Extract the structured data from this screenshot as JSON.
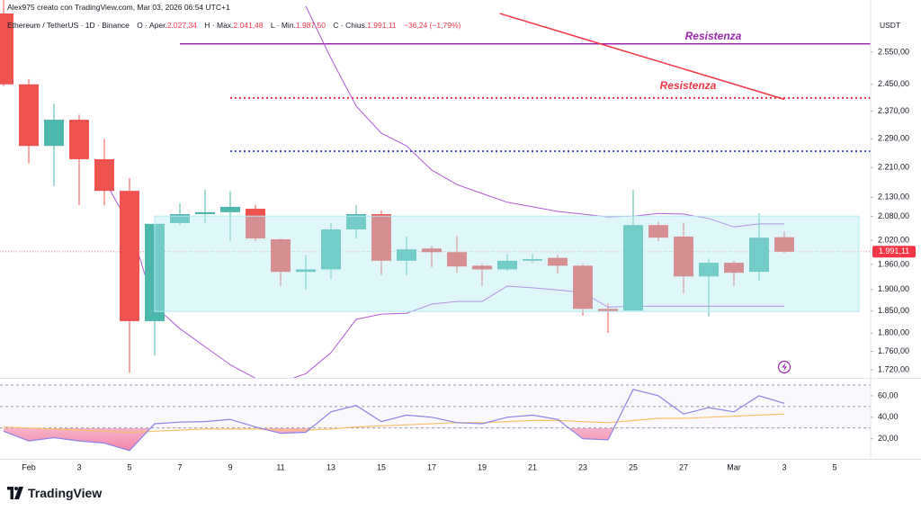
{
  "header": "Alex975 creato con TradingView.com, Mar 03, 2026 06:54 UTC+1",
  "footer": "TradingView",
  "chart_data": {
    "type": "candlestick",
    "legend": {
      "symbol": "Ethereum / TetherUS · 1D · Binance",
      "items": [
        {
          "label": "O · Aper.",
          "value": "2.027,34"
        },
        {
          "label": "H · Max.",
          "value": "2.041,48"
        },
        {
          "label": "L · Min.",
          "value": "1.987,50"
        },
        {
          "label": "C · Chius.",
          "value": "1.991,11"
        }
      ],
      "change": "−36,24 (−1,79%)"
    },
    "y_unit": "USDT",
    "categories": [
      null,
      "Feb",
      null,
      "3",
      null,
      "5",
      null,
      "7",
      null,
      "9",
      null,
      "11",
      null,
      "13",
      null,
      "15",
      null,
      "17",
      null,
      "19",
      null,
      "21",
      null,
      "23",
      null,
      "25",
      null,
      "27",
      null,
      "Mar",
      null,
      "3",
      null,
      "5"
    ],
    "open": [
      2675,
      2450,
      2270,
      2345,
      2233,
      2147,
      1827,
      2063,
      2086,
      2091,
      2100,
      2022,
      1942,
      1948,
      2047,
      2086,
      1969,
      1999,
      1990,
      1957,
      1948,
      1969,
      1976,
      1957,
      1855,
      1851,
      2058,
      2029,
      1931,
      1964,
      1942,
      2027.34,
      null,
      null
    ],
    "high": [
      2720,
      2466,
      2392,
      2360,
      2290,
      2181,
      2063,
      2115,
      2150,
      2146,
      2110,
      2024,
      1983,
      2063,
      2109,
      2096,
      2029,
      2005,
      2031,
      1962,
      1985,
      1985,
      1984,
      1962,
      1868,
      2150,
      2066,
      2064,
      1974,
      1969,
      2088,
      2041.48,
      null,
      null
    ],
    "low": [
      2445,
      2221,
      2160,
      2109,
      2109,
      1714,
      1751,
      2058,
      2063,
      2017,
      2017,
      1908,
      1900,
      1924,
      2024,
      1934,
      1934,
      1953,
      1940,
      1908,
      1944,
      1964,
      1938,
      1840,
      1800,
      1849,
      2017,
      1890,
      1838,
      1908,
      1920,
      1987.5,
      null,
      null
    ],
    "close": [
      2450,
      2270,
      2345,
      2233,
      2147,
      1827,
      2061,
      2086,
      2091,
      2105,
      2024,
      1942,
      1948,
      2047,
      2086,
      1969,
      1997,
      1990,
      1955,
      1948,
      1969,
      1973,
      1957,
      1855,
      1849,
      2058,
      2026,
      1931,
      1964,
      1940,
      2026,
      1991.11,
      null,
      null
    ],
    "up_color": "#4cb8ac",
    "down_color": "#ef5350",
    "last_price_label": "1.991,11",
    "log_scale": true,
    "ylim": [
      1703,
      2660
    ],
    "yticks": [
      {
        "value": 2550,
        "label": "2.550,00"
      },
      {
        "value": 2450,
        "label": "2.450,00"
      },
      {
        "value": 2370,
        "label": "2.370,00"
      },
      {
        "value": 2290,
        "label": "2.290,00"
      },
      {
        "value": 2210,
        "label": "2.210,00"
      },
      {
        "value": 2130,
        "label": "2.130,00"
      },
      {
        "value": 2080,
        "label": "2.080,00"
      },
      {
        "value": 2020,
        "label": "2.020,00"
      },
      {
        "value": 1960,
        "label": "1.960,00"
      },
      {
        "value": 1900,
        "label": "1.900,00"
      },
      {
        "value": 1850,
        "label": "1.850,00"
      },
      {
        "value": 1800,
        "label": "1.800,00"
      },
      {
        "value": 1760,
        "label": "1.760,00"
      },
      {
        "value": 1720,
        "label": "1.720,00"
      }
    ],
    "bands": [
      {
        "color": "#b15ad8",
        "values": [
          null,
          null,
          null,
          null,
          null,
          null,
          null,
          null,
          null,
          null,
          null,
          null,
          2699,
          2530,
          2385,
          2306,
          2270,
          2203,
          2164,
          2140,
          2117,
          2105,
          2093,
          2086,
          2079,
          2081,
          2088,
          2086,
          2075,
          2053,
          2061,
          2061,
          null,
          null
        ]
      },
      {
        "color": "#b15ad8",
        "values": [
          null,
          null,
          null,
          null,
          2176,
          2058,
          1861,
          1810,
          1770,
          1731,
          1702,
          1693,
          1712,
          1757,
          1831,
          1843,
          1845,
          1866,
          1872,
          1872,
          1908,
          1904,
          1899,
          1893,
          1859,
          1861,
          1861,
          1861,
          1861,
          1861,
          1861,
          1861,
          null,
          null
        ]
      }
    ],
    "drawings": {
      "horizontal_lines": [
        {
          "label": "Resistenza",
          "value": 2576,
          "color": "#9c27b0",
          "style": "solid"
        },
        {
          "value": 2409,
          "color": "#f23645",
          "style": "dotted"
        },
        {
          "value": 2255,
          "color": "#3f51b5",
          "style": "dotted"
        }
      ],
      "trend_line": {
        "label": "Resistenza",
        "values": [
          2675,
          2405
        ],
        "color": "#f23645"
      },
      "range_box": {
        "values": [
          2081,
          1849
        ],
        "color": "#b2ebf2"
      }
    },
    "indicator": {
      "ylim": [
        3,
        75
      ],
      "yticks": [
        {
          "value": 60,
          "label": "60,00"
        },
        {
          "value": 40,
          "label": "40,00"
        },
        {
          "value": 20,
          "label": "20,00"
        }
      ],
      "levels": [
        70,
        50,
        30
      ],
      "series": [
        {
          "color": "#8c82e8",
          "values": [
            27,
            18,
            21,
            18,
            16,
            9,
            34,
            35.5,
            36,
            38,
            31,
            25,
            26,
            45,
            51,
            36,
            42,
            40,
            35,
            34,
            40,
            42,
            38,
            20,
            19,
            66,
            60,
            43,
            49,
            45,
            60,
            53,
            null,
            null
          ]
        },
        {
          "color": "#f5c26b",
          "values": [
            31,
            30,
            29,
            28,
            27,
            26,
            27,
            28,
            29,
            29,
            29,
            28,
            28,
            29,
            31,
            32,
            33,
            34,
            35,
            35,
            36,
            37,
            37,
            36,
            35,
            37,
            39,
            39,
            40,
            41,
            42,
            43,
            null,
            null
          ]
        }
      ]
    }
  }
}
